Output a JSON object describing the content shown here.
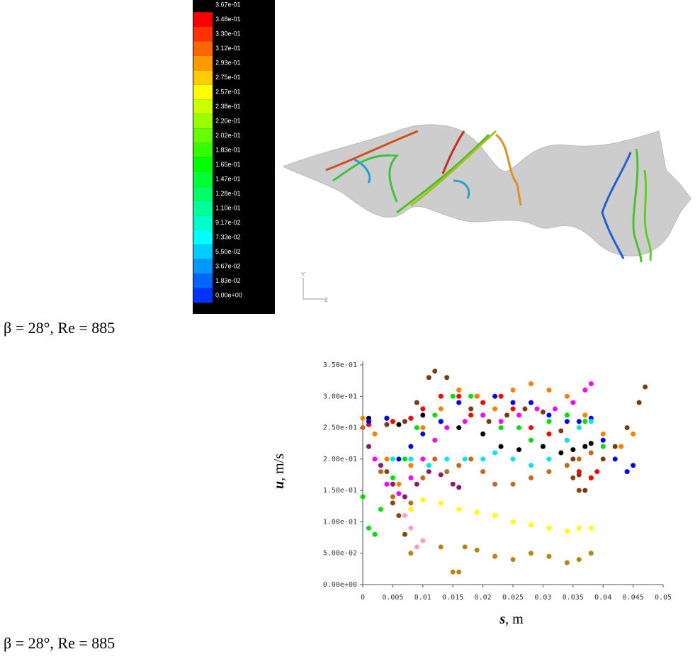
{
  "colorbar": {
    "labels": [
      "3.67e-01",
      "3.48e-01",
      "3.30e-01",
      "3.12e-01",
      "2.93e-01",
      "2.75e-01",
      "2.57e-01",
      "2.38e-01",
      "2.20e-01",
      "2.02e-01",
      "1.83e-01",
      "1.65e-01",
      "1.47e-01",
      "1.28e-01",
      "1.10e-01",
      "9.17e-02",
      "7.33e-02",
      "5.50e-02",
      "3.67e-02",
      "1.83e-02",
      "0.00e+00"
    ],
    "colors": [
      "#ff0000",
      "#ff3300",
      "#ff6600",
      "#ff9900",
      "#ffcc00",
      "#ffff00",
      "#ccff00",
      "#99ff00",
      "#66ff00",
      "#33ff00",
      "#00ff00",
      "#00ff33",
      "#00ff66",
      "#00ff99",
      "#00ffcc",
      "#00ffff",
      "#00ccff",
      "#0099ff",
      "#0066ff",
      "#0033ff"
    ]
  },
  "axis_triad": {
    "y": "Y",
    "z": "Z"
  },
  "caption_top": "β = 28°, Re = 885",
  "caption_bottom": "β = 28°, Re = 885",
  "chart_data": {
    "type": "scatter",
    "xlabel_symbol": "s",
    "xlabel_unit": ", m",
    "ylabel_symbol": "u",
    "ylabel_unit": ", m/s",
    "xlim": [
      0,
      0.05
    ],
    "ylim": [
      0,
      0.35
    ],
    "xticks": [
      0,
      0.005,
      0.01,
      0.015,
      0.02,
      0.025,
      0.03,
      0.035,
      0.04,
      0.045,
      0.05
    ],
    "yticks": [
      {
        "value": 0,
        "label": "0.00e+00"
      },
      {
        "value": 0.05,
        "label": "5.00e-02"
      },
      {
        "value": 0.1,
        "label": "1.00e-01"
      },
      {
        "value": 0.15,
        "label": "1.50e-01"
      },
      {
        "value": 0.2,
        "label": "2.00e-01"
      },
      {
        "value": 0.25,
        "label": "2.50e-01"
      },
      {
        "value": 0.3,
        "label": "3.00e-01"
      },
      {
        "value": 0.35,
        "label": "3.50e-01"
      }
    ],
    "series": [
      {
        "color": "#000000",
        "x": [
          0.001,
          0.004,
          0.006,
          0.008,
          0.01,
          0.013,
          0.016,
          0.02,
          0.023,
          0.026,
          0.03,
          0.033,
          0.035,
          0.037,
          0.038
        ],
        "values": [
          0.265,
          0.265,
          0.255,
          0.265,
          0.27,
          0.26,
          0.25,
          0.24,
          0.22,
          0.215,
          0.22,
          0.21,
          0.215,
          0.22,
          0.225
        ]
      },
      {
        "color": "#7b3a10",
        "x": [
          0.001,
          0.004,
          0.007,
          0.009,
          0.011,
          0.012,
          0.014,
          0.016,
          0.018,
          0.021,
          0.024,
          0.027,
          0.03,
          0.033,
          0.035,
          0.036,
          0.037,
          0.038,
          0.04,
          0.042,
          0.044,
          0.046,
          0.047
        ],
        "values": [
          0.26,
          0.255,
          0.26,
          0.29,
          0.33,
          0.34,
          0.33,
          0.31,
          0.28,
          0.26,
          0.27,
          0.28,
          0.275,
          0.245,
          0.2,
          0.175,
          0.15,
          0.17,
          0.2,
          0.22,
          0.25,
          0.29,
          0.315
        ]
      },
      {
        "color": "#ff0000",
        "x": [
          0.001,
          0.005,
          0.008,
          0.01,
          0.013,
          0.016,
          0.018,
          0.02,
          0.023,
          0.025,
          0.028,
          0.031,
          0.034,
          0.036,
          0.038,
          0.039
        ],
        "values": [
          0.255,
          0.26,
          0.265,
          0.28,
          0.3,
          0.3,
          0.27,
          0.29,
          0.3,
          0.28,
          0.25,
          0.24,
          0.23,
          0.18,
          0.17,
          0.18
        ]
      },
      {
        "color": "#0000ff",
        "x": [
          0.001,
          0.004,
          0.006,
          0.008,
          0.01,
          0.013,
          0.016,
          0.019,
          0.022,
          0.025,
          0.028,
          0.031,
          0.034,
          0.036,
          0.038,
          0.04,
          0.042,
          0.044,
          0.045
        ],
        "values": [
          0.26,
          0.265,
          0.2,
          0.22,
          0.24,
          0.26,
          0.29,
          0.3,
          0.3,
          0.29,
          0.29,
          0.27,
          0.26,
          0.26,
          0.265,
          0.23,
          0.2,
          0.18,
          0.19
        ]
      },
      {
        "color": "#00e000",
        "x": [
          0,
          0.001,
          0.002,
          0.003,
          0.005,
          0.007,
          0.009,
          0.012,
          0.015,
          0.018,
          0.02,
          0.023,
          0.026,
          0.028,
          0.031,
          0.034,
          0.037,
          0.04,
          0.043
        ],
        "values": [
          0.14,
          0.09,
          0.08,
          0.12,
          0.17,
          0.2,
          0.25,
          0.27,
          0.3,
          0.3,
          0.27,
          0.25,
          0.25,
          0.23,
          0.26,
          0.27,
          0.26,
          0.22,
          0.22
        ]
      },
      {
        "color": "#ff8000",
        "x": [
          0,
          0.002,
          0.004,
          0.006,
          0.008,
          0.01,
          0.013,
          0.016,
          0.019,
          0.022,
          0.025,
          0.028,
          0.031,
          0.034,
          0.037,
          0.04,
          0.043,
          0.045
        ],
        "values": [
          0.265,
          0.24,
          0.2,
          0.16,
          0.19,
          0.25,
          0.28,
          0.31,
          0.3,
          0.28,
          0.31,
          0.32,
          0.31,
          0.3,
          0.27,
          0.24,
          0.22,
          0.24
        ]
      },
      {
        "color": "#00e5ee",
        "x": [
          0.005,
          0.008,
          0.011,
          0.014,
          0.017,
          0.02,
          0.022,
          0.025,
          0.028,
          0.031,
          0.034,
          0.036,
          0.038
        ],
        "values": [
          0.2,
          0.2,
          0.19,
          0.2,
          0.2,
          0.2,
          0.21,
          0.2,
          0.19,
          0.2,
          0.23,
          0.25,
          0.26
        ]
      },
      {
        "color": "#ff00ff",
        "x": [
          0,
          0.002,
          0.004,
          0.006,
          0.008,
          0.01,
          0.012,
          0.014,
          0.017,
          0.02,
          0.023,
          0.026,
          0.029,
          0.032,
          0.035,
          0.037,
          0.038
        ],
        "values": [
          0.25,
          0.2,
          0.16,
          0.145,
          0.17,
          0.2,
          0.23,
          0.25,
          0.26,
          0.27,
          0.26,
          0.27,
          0.28,
          0.28,
          0.29,
          0.31,
          0.32
        ]
      },
      {
        "color": "#8b1a6b",
        "x": [
          0.001,
          0.003,
          0.005,
          0.007,
          0.009,
          0.011,
          0.013,
          0.015,
          0.016
        ],
        "values": [
          0.22,
          0.19,
          0.16,
          0.14,
          0.16,
          0.18,
          0.175,
          0.16,
          0.155
        ]
      },
      {
        "color": "#c06a20",
        "x": [
          0,
          0.003,
          0.005,
          0.008,
          0.01,
          0.012,
          0.014,
          0.016,
          0.018,
          0.02,
          0.022,
          0.025,
          0.028,
          0.031,
          0.034,
          0.036,
          0.038
        ],
        "values": [
          0.25,
          0.18,
          0.14,
          0.13,
          0.17,
          0.2,
          0.18,
          0.19,
          0.2,
          0.18,
          0.16,
          0.16,
          0.17,
          0.18,
          0.19,
          0.2,
          0.21
        ]
      },
      {
        "color": "#ffff00",
        "x": [
          0.008,
          0.01,
          0.013,
          0.016,
          0.019,
          0.022,
          0.025,
          0.028,
          0.031,
          0.034,
          0.036,
          0.038
        ],
        "values": [
          0.12,
          0.135,
          0.13,
          0.12,
          0.115,
          0.11,
          0.1,
          0.095,
          0.09,
          0.085,
          0.09,
          0.09
        ]
      },
      {
        "color": "#b8860b",
        "x": [
          0.008,
          0.01,
          0.013,
          0.015,
          0.016,
          0.017,
          0.019,
          0.022,
          0.025,
          0.028,
          0.031,
          0.034,
          0.036,
          0.038
        ],
        "values": [
          0.05,
          0.07,
          0.06,
          0.02,
          0.02,
          0.06,
          0.055,
          0.045,
          0.04,
          0.05,
          0.045,
          0.035,
          0.04,
          0.05
        ]
      },
      {
        "color": "#ff9ec8",
        "x": [
          0.007,
          0.008,
          0.009,
          0.01
        ],
        "values": [
          0.11,
          0.09,
          0.06,
          0.07
        ]
      },
      {
        "color": "#8b4513",
        "x": [
          0.004,
          0.005,
          0.006,
          0.007,
          0.035,
          0.036
        ],
        "values": [
          0.18,
          0.13,
          0.11,
          0.08,
          0.17,
          0.15
        ]
      }
    ]
  }
}
